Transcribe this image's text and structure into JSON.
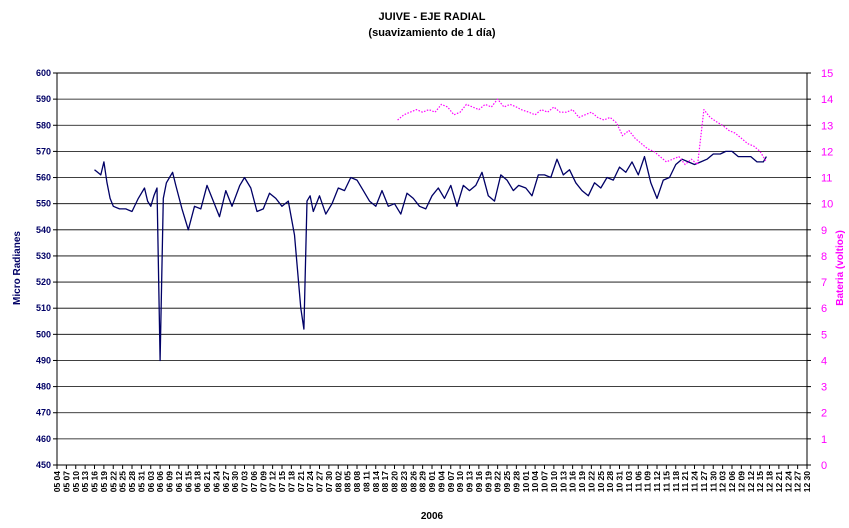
{
  "chart_data": {
    "type": "line",
    "title": "JUIVE - EJE RADIAL",
    "subtitle": "(suavizamiento de 1 día)",
    "xlabel": "2006",
    "ylabel_left": "Micro Radianes",
    "ylabel_right": "Bateria (voltios)",
    "ylim_left": [
      450,
      600
    ],
    "ylim_right": [
      0,
      15
    ],
    "yticks_left": [
      450,
      460,
      470,
      480,
      490,
      500,
      510,
      520,
      530,
      540,
      550,
      560,
      570,
      580,
      590,
      600
    ],
    "yticks_right": [
      0,
      1,
      2,
      3,
      4,
      5,
      6,
      7,
      8,
      9,
      10,
      11,
      12,
      13,
      14,
      15
    ],
    "x_tick_labels": [
      "05 04",
      "05 07",
      "05 10",
      "05 13",
      "05 16",
      "05 19",
      "05 22",
      "05 25",
      "05 28",
      "05 31",
      "06 03",
      "06 06",
      "06 09",
      "06 12",
      "06 15",
      "06 18",
      "06 21",
      "06 24",
      "06 27",
      "06 30",
      "07 03",
      "07 06",
      "07 09",
      "07 12",
      "07 15",
      "07 18",
      "07 21",
      "07 24",
      "07 27",
      "07 30",
      "08 02",
      "08 05",
      "08 08",
      "08 11",
      "08 14",
      "08 17",
      "08 20",
      "08 23",
      "08 26",
      "08 29",
      "09 01",
      "09 04",
      "09 07",
      "09 10",
      "09 13",
      "09 16",
      "09 19",
      "09 22",
      "09 25",
      "09 28",
      "10 01",
      "10 04",
      "10 07",
      "10 10",
      "10 13",
      "10 16",
      "10 19",
      "10 22",
      "10 25",
      "10 28",
      "10 31",
      "11 03",
      "11 06",
      "11 09",
      "11 12",
      "11 15",
      "11 18",
      "11 21",
      "11 24",
      "11 27",
      "11 30",
      "12 03",
      "12 06",
      "12 09",
      "12 12",
      "12 15",
      "12 18",
      "12 21",
      "12 24",
      "12 27",
      "12 30"
    ],
    "grid": "horizontal",
    "series": [
      {
        "axis": "left",
        "color": "#000066",
        "style": "solid",
        "x": [
          "05 16",
          "05 17",
          "05 18",
          "05 19",
          "05 20",
          "05 21",
          "05 22",
          "05 24",
          "05 26",
          "05 28",
          "05 30",
          "06 01",
          "06 02",
          "06 03",
          "06 04",
          "06 05",
          "06 06",
          "06 07",
          "06 08",
          "06 09",
          "06 10",
          "06 11",
          "06 13",
          "06 15",
          "06 17",
          "06 19",
          "06 21",
          "06 23",
          "06 25",
          "06 27",
          "06 29",
          "07 01",
          "07 03",
          "07 05",
          "07 07",
          "07 09",
          "07 11",
          "07 13",
          "07 15",
          "07 17",
          "07 19",
          "07 21",
          "07 22",
          "07 23",
          "07 24",
          "07 25",
          "07 27",
          "07 29",
          "07 31",
          "08 02",
          "08 04",
          "08 06",
          "08 08",
          "08 10",
          "08 12",
          "08 14",
          "08 16",
          "08 18",
          "08 20",
          "08 22",
          "08 24",
          "08 26",
          "08 28",
          "08 30",
          "09 01",
          "09 03",
          "09 05",
          "09 07",
          "09 09",
          "09 11",
          "09 13",
          "09 15",
          "09 17",
          "09 19",
          "09 21",
          "09 23",
          "09 25",
          "09 27",
          "09 29",
          "10 01",
          "10 03",
          "10 05",
          "10 07",
          "10 09",
          "10 11",
          "10 13",
          "10 15",
          "10 17",
          "10 19",
          "10 21",
          "10 23",
          "10 25",
          "10 27",
          "10 29",
          "10 31",
          "11 02",
          "11 04",
          "11 06",
          "11 08",
          "11 10",
          "11 12",
          "11 14",
          "11 16",
          "11 18",
          "11 20",
          "11 22",
          "11 24",
          "11 26",
          "11 28",
          "11 30",
          "12 02",
          "12 04",
          "12 06",
          "12 08",
          "12 10",
          "12 12",
          "12 14",
          "12 16",
          "12 17"
        ],
        "y": [
          563,
          562,
          561,
          566,
          558,
          552,
          549,
          548,
          548,
          547,
          552,
          556,
          551,
          549,
          553,
          556,
          490,
          552,
          558,
          560,
          562,
          557,
          548,
          540,
          549,
          548,
          557,
          551,
          545,
          555,
          549,
          557,
          560,
          556,
          547,
          548,
          554,
          552,
          549,
          551,
          538,
          510,
          502,
          551,
          553,
          547,
          553,
          546,
          550,
          556,
          555,
          560,
          559,
          555,
          551,
          549,
          555,
          549,
          550,
          546,
          554,
          552,
          549,
          548,
          553,
          556,
          552,
          557,
          549,
          557,
          555,
          557,
          562,
          553,
          551,
          561,
          559,
          555,
          557,
          556,
          553,
          561,
          561,
          560,
          567,
          561,
          563,
          558,
          555,
          553,
          558,
          556,
          560,
          559,
          564,
          562,
          566,
          561,
          568,
          558,
          552,
          559,
          560,
          565,
          567,
          566,
          565,
          566,
          567,
          569,
          569,
          570,
          570,
          568,
          568,
          568,
          566,
          566,
          568
        ]
      },
      {
        "axis": "right",
        "color": "#ff00ff",
        "style": "dotted",
        "x": [
          "08 21",
          "08 23",
          "08 25",
          "08 27",
          "08 29",
          "08 31",
          "09 02",
          "09 04",
          "09 06",
          "09 08",
          "09 10",
          "09 12",
          "09 14",
          "09 16",
          "09 18",
          "09 20",
          "09 22",
          "09 24",
          "09 26",
          "09 28",
          "09 30",
          "10 02",
          "10 04",
          "10 06",
          "10 08",
          "10 10",
          "10 12",
          "10 14",
          "10 16",
          "10 18",
          "10 20",
          "10 22",
          "10 24",
          "10 26",
          "10 28",
          "10 30",
          "11 01",
          "11 03",
          "11 05",
          "11 07",
          "11 09",
          "11 11",
          "11 13",
          "11 15",
          "11 17",
          "11 19",
          "11 21",
          "11 23",
          "11 25",
          "11 27",
          "11 29",
          "12 01",
          "12 03",
          "12 05",
          "12 07",
          "12 09",
          "12 11",
          "12 13",
          "12 15",
          "12 17"
        ],
        "y": [
          13.2,
          13.4,
          13.5,
          13.6,
          13.5,
          13.6,
          13.5,
          13.8,
          13.7,
          13.4,
          13.5,
          13.8,
          13.7,
          13.6,
          13.8,
          13.7,
          14.0,
          13.7,
          13.8,
          13.7,
          13.6,
          13.5,
          13.4,
          13.6,
          13.5,
          13.7,
          13.5,
          13.5,
          13.6,
          13.3,
          13.4,
          13.5,
          13.3,
          13.2,
          13.3,
          13.1,
          12.6,
          12.8,
          12.5,
          12.3,
          12.1,
          12.0,
          11.8,
          11.6,
          11.7,
          11.8,
          11.5,
          11.7,
          11.5,
          13.6,
          13.3,
          13.1,
          13.0,
          12.8,
          12.7,
          12.5,
          12.3,
          12.2,
          12.0,
          11.6
        ]
      }
    ]
  }
}
